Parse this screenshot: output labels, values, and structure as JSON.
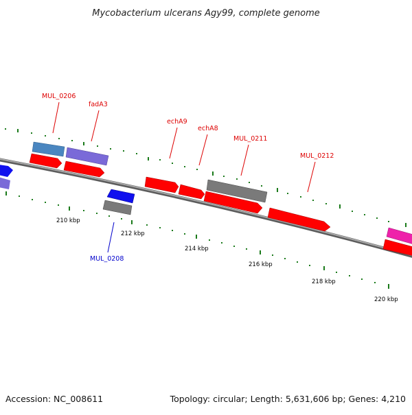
{
  "header": {
    "title": "Mycobacterium ulcerans Agy99, complete genome"
  },
  "footer": {
    "accession": "Accession: NC_008611",
    "summary": "Topology: circular; Length: 5,631,606 bp; Genes: 4,210"
  },
  "scale_labels": [
    "210 kbp",
    "212 kbp",
    "214 kbp",
    "216 kbp",
    "218 kbp",
    "220 kbp"
  ],
  "gene_labels": [
    {
      "text": "MUL_0206",
      "color": "#dd0000"
    },
    {
      "text": "fadA3",
      "color": "#dd0000"
    },
    {
      "text": "echA9",
      "color": "#dd0000"
    },
    {
      "text": "echA8",
      "color": "#dd0000"
    },
    {
      "text": "MUL_0211",
      "color": "#dd0000"
    },
    {
      "text": "MUL_0212",
      "color": "#dd0000"
    },
    {
      "text": "MUL_0208",
      "color": "#0000cc"
    }
  ],
  "colors": {
    "cds": "#ff0000",
    "tick": "#1a7a1a",
    "backbone": "#8c8c8c",
    "gene_blue": "#1010ee",
    "gene_purple": "#7a6ad8",
    "gene_steel": "#4a86c0",
    "gene_gray": "#7a7a7a",
    "gene_magenta": "#ee22aa"
  }
}
